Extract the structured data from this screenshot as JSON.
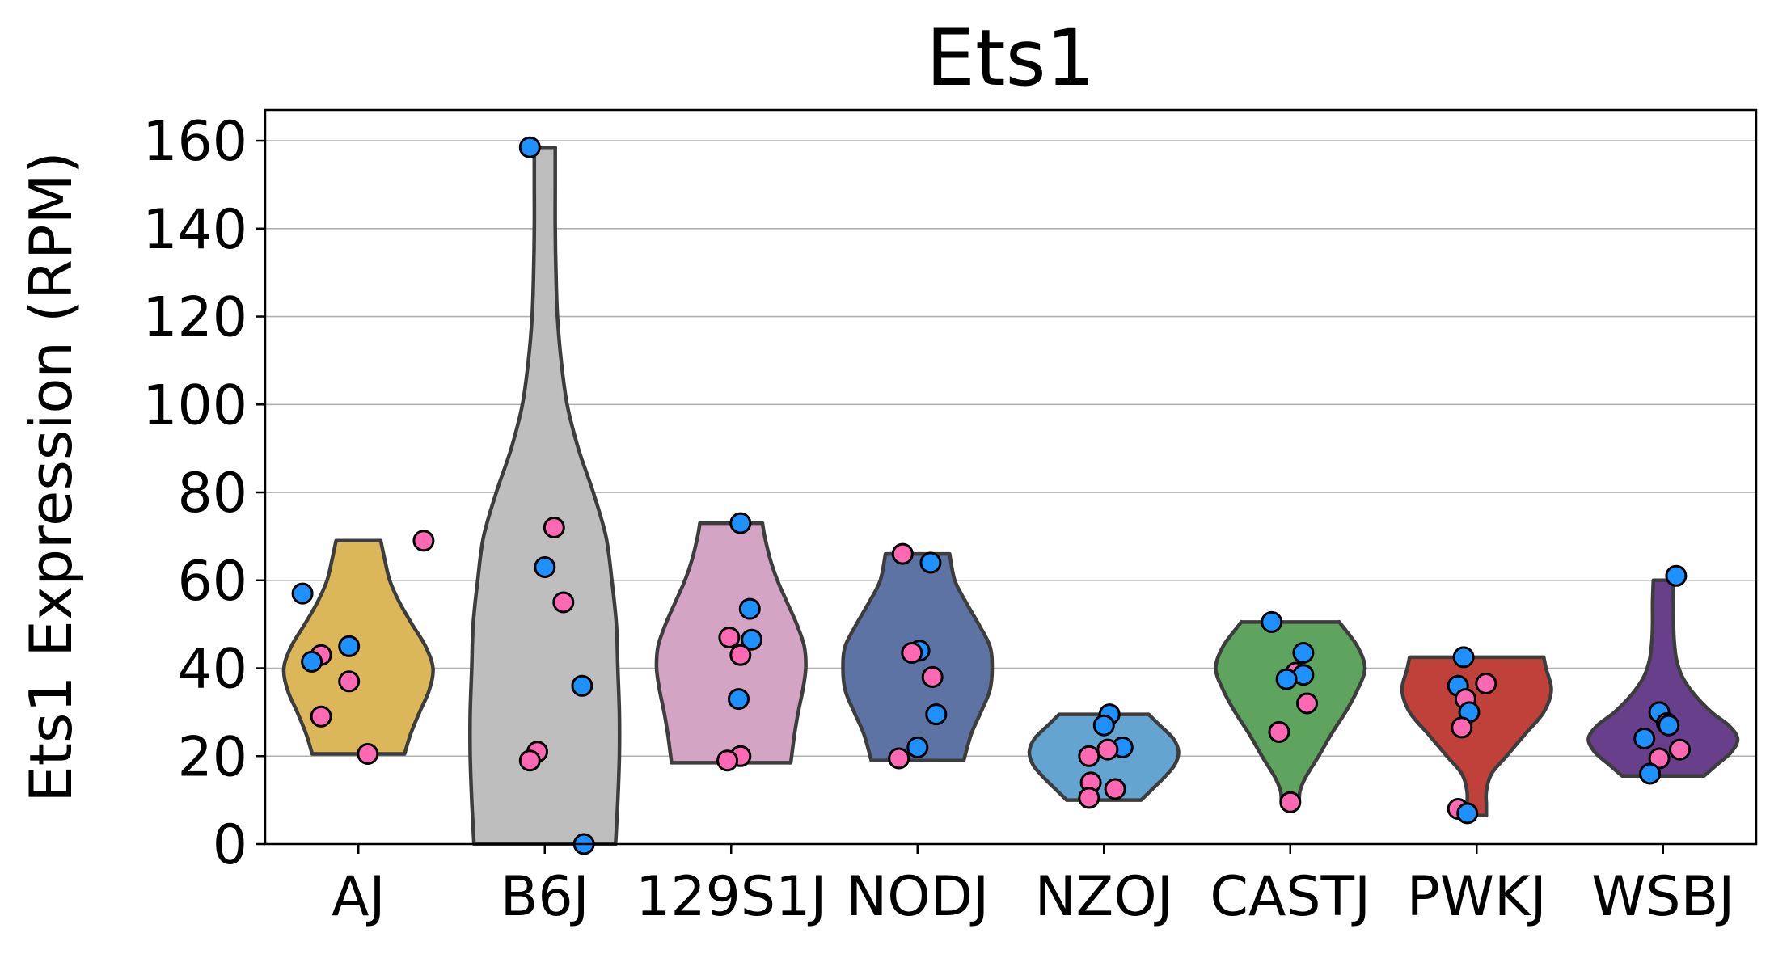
{
  "chart_data": {
    "type": "violin",
    "title": "Ets1",
    "ylabel": "Ets1 Expression (RPM)",
    "xlabel": "",
    "ylim": [
      0,
      167
    ],
    "yticks": [
      0,
      20,
      40,
      60,
      80,
      100,
      120,
      140,
      160
    ],
    "grid": "horizontal",
    "categories": [
      "AJ",
      "B6J",
      "129S1J",
      "NODJ",
      "NZOJ",
      "CASTJ",
      "PWKJ",
      "WSBJ"
    ],
    "colors": {
      "male": "#1e90ff",
      "female": "#ff69b4"
    },
    "groups": [
      {
        "category": "AJ",
        "fill": "#dcb75a",
        "profile": [
          [
            20.5,
            0.62
          ],
          [
            25,
            0.7
          ],
          [
            30,
            0.82
          ],
          [
            35,
            0.95
          ],
          [
            40,
            1.0
          ],
          [
            45,
            0.9
          ],
          [
            50,
            0.72
          ],
          [
            55,
            0.55
          ],
          [
            60,
            0.42
          ],
          [
            65,
            0.35
          ],
          [
            69,
            0.3
          ]
        ],
        "points": [
          {
            "value": 69,
            "sex": "female",
            "jitter": 0.35
          },
          {
            "value": 57,
            "sex": "male",
            "jitter": -0.3
          },
          {
            "value": 45,
            "sex": "male",
            "jitter": -0.05
          },
          {
            "value": 43,
            "sex": "female",
            "jitter": -0.2
          },
          {
            "value": 41.5,
            "sex": "male",
            "jitter": -0.25
          },
          {
            "value": 37,
            "sex": "female",
            "jitter": -0.05
          },
          {
            "value": 29,
            "sex": "female",
            "jitter": -0.2
          },
          {
            "value": 20.5,
            "sex": "female",
            "jitter": 0.05
          }
        ]
      },
      {
        "category": "B6J",
        "fill": "#bebebe",
        "profile": [
          [
            0,
            0.95
          ],
          [
            10,
            0.98
          ],
          [
            20,
            1.0
          ],
          [
            30,
            1.0
          ],
          [
            40,
            0.98
          ],
          [
            50,
            0.96
          ],
          [
            60,
            0.9
          ],
          [
            70,
            0.82
          ],
          [
            80,
            0.65
          ],
          [
            90,
            0.45
          ],
          [
            100,
            0.3
          ],
          [
            110,
            0.22
          ],
          [
            120,
            0.17
          ],
          [
            130,
            0.15
          ],
          [
            140,
            0.14
          ],
          [
            150,
            0.14
          ],
          [
            158.5,
            0.14
          ]
        ],
        "points": [
          {
            "value": 158.5,
            "sex": "male",
            "jitter": -0.08
          },
          {
            "value": 72,
            "sex": "female",
            "jitter": 0.05
          },
          {
            "value": 63,
            "sex": "male",
            "jitter": 0.0
          },
          {
            "value": 55,
            "sex": "female",
            "jitter": 0.1
          },
          {
            "value": 36,
            "sex": "male",
            "jitter": 0.2
          },
          {
            "value": 21,
            "sex": "female",
            "jitter": -0.04
          },
          {
            "value": 19,
            "sex": "female",
            "jitter": -0.08
          },
          {
            "value": 0,
            "sex": "male",
            "jitter": 0.21
          }
        ]
      },
      {
        "category": "129S1J",
        "fill": "#d4a4c4",
        "profile": [
          [
            18.5,
            0.8
          ],
          [
            25,
            0.85
          ],
          [
            30,
            0.9
          ],
          [
            35,
            0.96
          ],
          [
            40,
            1.0
          ],
          [
            45,
            0.98
          ],
          [
            50,
            0.88
          ],
          [
            55,
            0.75
          ],
          [
            60,
            0.62
          ],
          [
            65,
            0.52
          ],
          [
            70,
            0.45
          ],
          [
            73,
            0.42
          ]
        ],
        "points": [
          {
            "value": 73,
            "sex": "male",
            "jitter": 0.05
          },
          {
            "value": 53.5,
            "sex": "male",
            "jitter": 0.1
          },
          {
            "value": 47,
            "sex": "female",
            "jitter": -0.01
          },
          {
            "value": 46.5,
            "sex": "male",
            "jitter": 0.11
          },
          {
            "value": 43,
            "sex": "female",
            "jitter": 0.05
          },
          {
            "value": 33,
            "sex": "male",
            "jitter": 0.04
          },
          {
            "value": 20,
            "sex": "female",
            "jitter": 0.05
          },
          {
            "value": 19,
            "sex": "female",
            "jitter": -0.02
          }
        ]
      },
      {
        "category": "NODJ",
        "fill": "#5c73a4",
        "profile": [
          [
            19,
            0.62
          ],
          [
            25,
            0.72
          ],
          [
            30,
            0.85
          ],
          [
            35,
            0.97
          ],
          [
            40,
            1.0
          ],
          [
            45,
            0.97
          ],
          [
            50,
            0.82
          ],
          [
            55,
            0.65
          ],
          [
            60,
            0.5
          ],
          [
            66,
            0.43
          ]
        ],
        "points": [
          {
            "value": 66,
            "sex": "female",
            "jitter": -0.08
          },
          {
            "value": 64,
            "sex": "male",
            "jitter": 0.07
          },
          {
            "value": 44,
            "sex": "male",
            "jitter": 0.01
          },
          {
            "value": 43.5,
            "sex": "female",
            "jitter": -0.03
          },
          {
            "value": 38,
            "sex": "female",
            "jitter": 0.08
          },
          {
            "value": 29.5,
            "sex": "male",
            "jitter": 0.1
          },
          {
            "value": 22,
            "sex": "male",
            "jitter": 0.0
          },
          {
            "value": 19.5,
            "sex": "female",
            "jitter": -0.1
          }
        ]
      },
      {
        "category": "NZOJ",
        "fill": "#64a4d0",
        "profile": [
          [
            10,
            0.5
          ],
          [
            12,
            0.62
          ],
          [
            15,
            0.8
          ],
          [
            18,
            0.95
          ],
          [
            21,
            1.0
          ],
          [
            24,
            0.93
          ],
          [
            27,
            0.75
          ],
          [
            29.5,
            0.6
          ]
        ],
        "points": [
          {
            "value": 29.5,
            "sex": "male",
            "jitter": 0.03
          },
          {
            "value": 27,
            "sex": "male",
            "jitter": 0.0
          },
          {
            "value": 22,
            "sex": "male",
            "jitter": 0.1
          },
          {
            "value": 21.5,
            "sex": "female",
            "jitter": 0.02
          },
          {
            "value": 20,
            "sex": "female",
            "jitter": -0.08
          },
          {
            "value": 14,
            "sex": "female",
            "jitter": -0.07
          },
          {
            "value": 12.5,
            "sex": "female",
            "jitter": 0.06
          },
          {
            "value": 10.5,
            "sex": "female",
            "jitter": -0.08
          }
        ]
      },
      {
        "category": "CASTJ",
        "fill": "#5ea35e",
        "profile": [
          [
            9.5,
            0.12
          ],
          [
            12,
            0.13
          ],
          [
            15,
            0.2
          ],
          [
            20,
            0.38
          ],
          [
            25,
            0.55
          ],
          [
            30,
            0.74
          ],
          [
            35,
            0.9
          ],
          [
            40,
            1.0
          ],
          [
            45,
            0.9
          ],
          [
            50,
            0.68
          ],
          [
            50.5,
            0.66
          ]
        ],
        "points": [
          {
            "value": 50.5,
            "sex": "male",
            "jitter": -0.1
          },
          {
            "value": 43.5,
            "sex": "male",
            "jitter": 0.07
          },
          {
            "value": 39,
            "sex": "female",
            "jitter": 0.03
          },
          {
            "value": 38.5,
            "sex": "male",
            "jitter": 0.07
          },
          {
            "value": 37.5,
            "sex": "male",
            "jitter": -0.02
          },
          {
            "value": 32,
            "sex": "female",
            "jitter": 0.09
          },
          {
            "value": 25.5,
            "sex": "female",
            "jitter": -0.06
          },
          {
            "value": 9.5,
            "sex": "female",
            "jitter": 0.0
          }
        ]
      },
      {
        "category": "PWKJ",
        "fill": "#c0413a",
        "profile": [
          [
            6.5,
            0.13
          ],
          [
            9,
            0.13
          ],
          [
            12,
            0.13
          ],
          [
            16,
            0.2
          ],
          [
            20,
            0.4
          ],
          [
            25,
            0.65
          ],
          [
            30,
            0.9
          ],
          [
            35,
            1.0
          ],
          [
            40,
            0.93
          ],
          [
            42.5,
            0.9
          ]
        ],
        "points": [
          {
            "value": 42.5,
            "sex": "male",
            "jitter": -0.07
          },
          {
            "value": 36.5,
            "sex": "female",
            "jitter": 0.05
          },
          {
            "value": 36,
            "sex": "male",
            "jitter": -0.1
          },
          {
            "value": 33,
            "sex": "female",
            "jitter": -0.06
          },
          {
            "value": 30,
            "sex": "male",
            "jitter": -0.04
          },
          {
            "value": 26.5,
            "sex": "female",
            "jitter": -0.08
          },
          {
            "value": 8,
            "sex": "female",
            "jitter": -0.1
          },
          {
            "value": 7,
            "sex": "male",
            "jitter": -0.05
          }
        ]
      },
      {
        "category": "WSBJ",
        "fill": "#673f8a",
        "profile": [
          [
            15.5,
            0.55
          ],
          [
            18,
            0.72
          ],
          [
            21,
            0.92
          ],
          [
            24,
            1.0
          ],
          [
            27,
            0.88
          ],
          [
            30,
            0.65
          ],
          [
            34,
            0.42
          ],
          [
            38,
            0.26
          ],
          [
            42,
            0.18
          ],
          [
            46,
            0.15
          ],
          [
            50,
            0.14
          ],
          [
            55,
            0.14
          ],
          [
            60,
            0.13
          ]
        ],
        "points": [
          {
            "value": 61,
            "sex": "male",
            "jitter": 0.07
          },
          {
            "value": 30,
            "sex": "male",
            "jitter": -0.02
          },
          {
            "value": 27.5,
            "sex": "female",
            "jitter": 0.02
          },
          {
            "value": 27,
            "sex": "male",
            "jitter": 0.03
          },
          {
            "value": 24,
            "sex": "male",
            "jitter": -0.1
          },
          {
            "value": 21.5,
            "sex": "female",
            "jitter": 0.09
          },
          {
            "value": 19.5,
            "sex": "female",
            "jitter": -0.02
          },
          {
            "value": 16,
            "sex": "male",
            "jitter": -0.07
          }
        ]
      }
    ]
  }
}
